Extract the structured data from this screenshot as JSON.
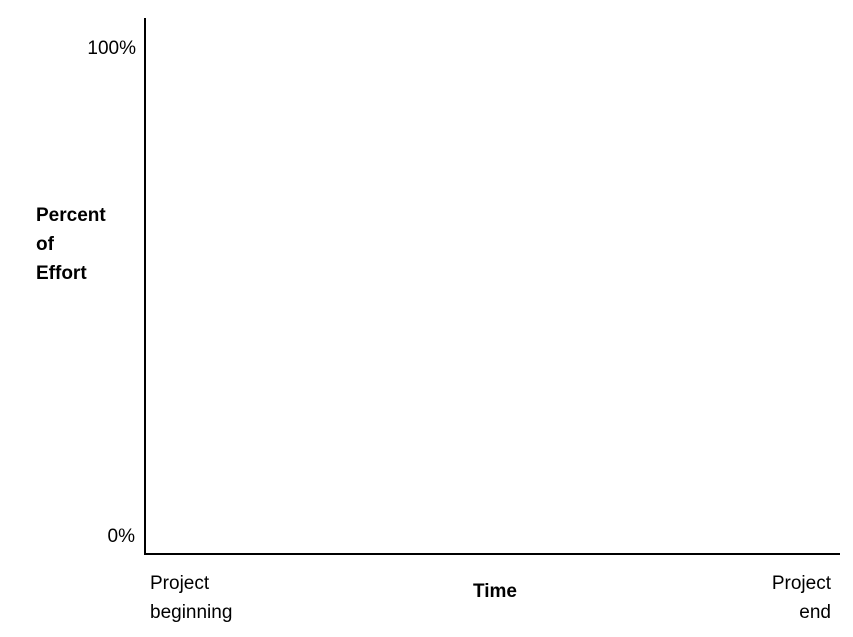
{
  "chart_data": {
    "type": "line",
    "title": "",
    "ylabel_lines": [
      "Percent",
      "of",
      "Effort"
    ],
    "xlabel": "Time",
    "y_ticks": [
      "100%",
      "0%"
    ],
    "ylim": [
      0,
      100
    ],
    "x_ticks": [
      {
        "lines": [
          "Project",
          "beginning"
        ]
      },
      {
        "lines": [
          "Project",
          "end"
        ]
      }
    ],
    "series": [],
    "grid": false,
    "legend": "none"
  }
}
